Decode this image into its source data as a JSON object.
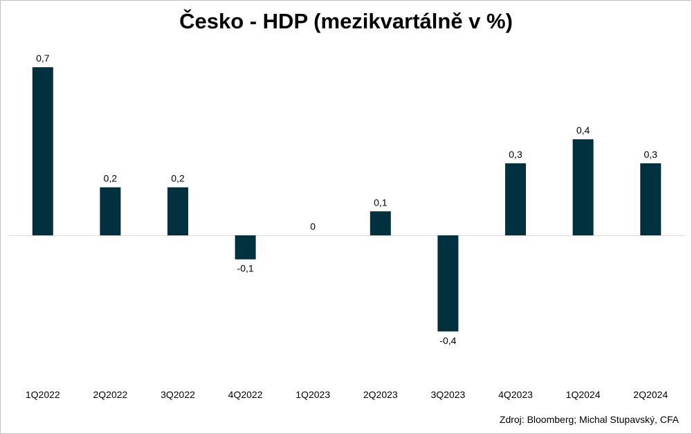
{
  "chart_data": {
    "type": "bar",
    "title": "Česko - HDP (mezikvartálně v %)",
    "categories": [
      "1Q2022",
      "2Q2022",
      "3Q2022",
      "4Q2022",
      "1Q2023",
      "2Q2023",
      "3Q2023",
      "4Q2023",
      "1Q2024",
      "2Q2024"
    ],
    "values": [
      0.7,
      0.2,
      0.2,
      -0.1,
      0,
      0.1,
      -0.4,
      0.3,
      0.4,
      0.3
    ],
    "value_labels": [
      "0,7",
      "0,2",
      "0,2",
      "-0,1",
      "0",
      "0,1",
      "-0,4",
      "0,3",
      "0,4",
      "0,3"
    ],
    "ylim": [
      -0.4,
      0.7
    ],
    "grid": false,
    "legend": "none",
    "bar_color": "#01313f",
    "axis_color": "#d9d9d9"
  },
  "source_note": "Zdroj: Bloomberg; Michal Stupavský, CFA"
}
